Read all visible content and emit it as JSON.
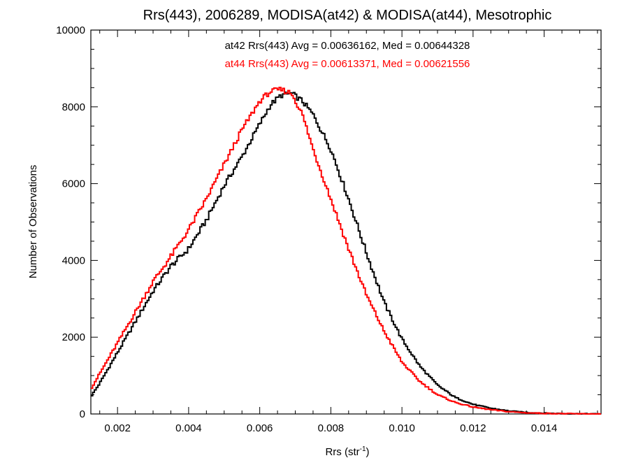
{
  "chart_data": {
    "type": "line",
    "title": "Rrs(443), 2006289, MODISA(at42) & MODISA(at44), Mesotrophic",
    "xlabel": "Rrs (str",
    "xlabel_sup": "-1",
    "xlabel_close": ")",
    "ylabel": "Number of Observations",
    "xlim": [
      0.00125,
      0.0156
    ],
    "ylim": [
      0,
      10000
    ],
    "x_ticks": [
      0.002,
      0.004,
      0.006,
      0.008,
      0.01,
      0.012,
      0.014
    ],
    "x_tick_labels": [
      "0.002",
      "0.004",
      "0.006",
      "0.008",
      "0.010",
      "0.012",
      "0.014"
    ],
    "y_ticks": [
      0,
      2000,
      4000,
      6000,
      8000,
      10000
    ],
    "y_tick_labels": [
      "0",
      "2000",
      "4000",
      "6000",
      "8000",
      "10000"
    ],
    "annotations": [
      {
        "text": "at42 Rrs(443) Avg = 0.00636162, Med = 0.00644328",
        "color": "#000000"
      },
      {
        "text": "at44 Rrs(443) Avg = 0.00613371, Med = 0.00621556",
        "color": "#ff0000"
      }
    ],
    "series": [
      {
        "color": "#000000",
        "x": [
          0.00125,
          0.0015,
          0.002,
          0.0025,
          0.003,
          0.0035,
          0.004,
          0.0045,
          0.005,
          0.0055,
          0.006,
          0.0063,
          0.0066,
          0.0069,
          0.0072,
          0.0075,
          0.008,
          0.0085,
          0.009,
          0.0095,
          0.01,
          0.0105,
          0.011,
          0.0115,
          0.012,
          0.0125,
          0.013,
          0.0135,
          0.014,
          0.0145,
          0.015,
          0.0156
        ],
        "y": [
          450,
          800,
          1600,
          2400,
          3200,
          3850,
          4300,
          5050,
          5950,
          6700,
          7550,
          8050,
          8300,
          8350,
          8150,
          7800,
          6900,
          5600,
          4200,
          2900,
          1950,
          1250,
          750,
          430,
          250,
          150,
          80,
          40,
          20,
          10,
          5,
          0
        ]
      },
      {
        "color": "#ff0000",
        "x": [
          0.00125,
          0.0015,
          0.002,
          0.0025,
          0.003,
          0.0035,
          0.004,
          0.0045,
          0.005,
          0.0055,
          0.006,
          0.0063,
          0.0066,
          0.0069,
          0.0072,
          0.0075,
          0.008,
          0.0085,
          0.009,
          0.0095,
          0.01,
          0.0105,
          0.011,
          0.0115,
          0.012,
          0.0125,
          0.013,
          0.0135,
          0.014,
          0.0145,
          0.015,
          0.0156
        ],
        "y": [
          650,
          1050,
          1850,
          2650,
          3450,
          4100,
          4800,
          5600,
          6500,
          7400,
          8150,
          8400,
          8450,
          8350,
          7800,
          6900,
          5600,
          4300,
          3100,
          2150,
          1350,
          850,
          500,
          300,
          180,
          110,
          60,
          30,
          15,
          8,
          3,
          0
        ]
      }
    ]
  }
}
